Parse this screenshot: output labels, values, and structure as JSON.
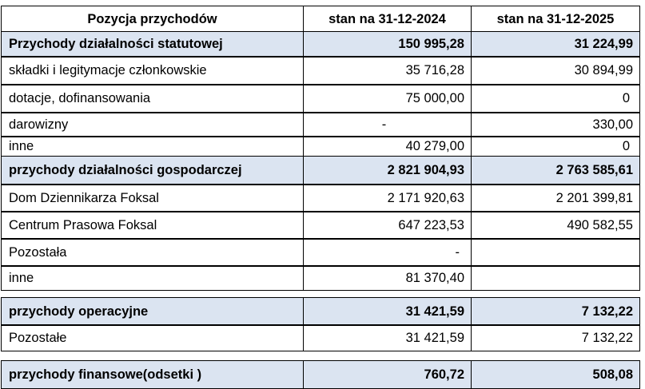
{
  "table": {
    "headers": [
      "Pozycja przychodów",
      "stan na 31-12-2024",
      "stan na 31-12-2025"
    ],
    "rows": [
      {
        "label": "Przychody działalności statutowej",
        "v2024": "150 995,28",
        "v2025": "31 224,99"
      },
      {
        "label": "składki i legitymacje członkowskie",
        "v2024": "35 716,28",
        "v2025": "30 894,99"
      },
      {
        "label": "dotacje, dofinansowania",
        "v2024": "75 000,00",
        "v2025": "0"
      },
      {
        "label": "darowizny",
        "v2024": "-",
        "v2025": "330,00"
      },
      {
        "label": "inne",
        "v2024": "40 279,00",
        "v2025": "0"
      },
      {
        "label": "przychody działalności gospodarczej",
        "v2024": "2 821 904,93",
        "v2025": "2 763 585,61"
      },
      {
        "label": "Dom Dziennikarza Foksal",
        "v2024": "2 171 920,63",
        "v2025": "2 201 399,81"
      },
      {
        "label": "Centrum Prasowa Foksal",
        "v2024": "647 223,53",
        "v2025": "490 582,55"
      },
      {
        "label": "Pozostała",
        "v2024": "-",
        "v2025": ""
      },
      {
        "label": "inne",
        "v2024": "81 370,40",
        "v2025": ""
      },
      {
        "label": "przychody operacyjne",
        "v2024": "31 421,59",
        "v2025": "7 132,22"
      },
      {
        "label": "Pozostałe",
        "v2024": "31 421,59",
        "v2025": "7 132,22"
      },
      {
        "label": "przychody finansowe(odsetki )",
        "v2024": "760,72",
        "v2025": "508,08"
      }
    ]
  }
}
